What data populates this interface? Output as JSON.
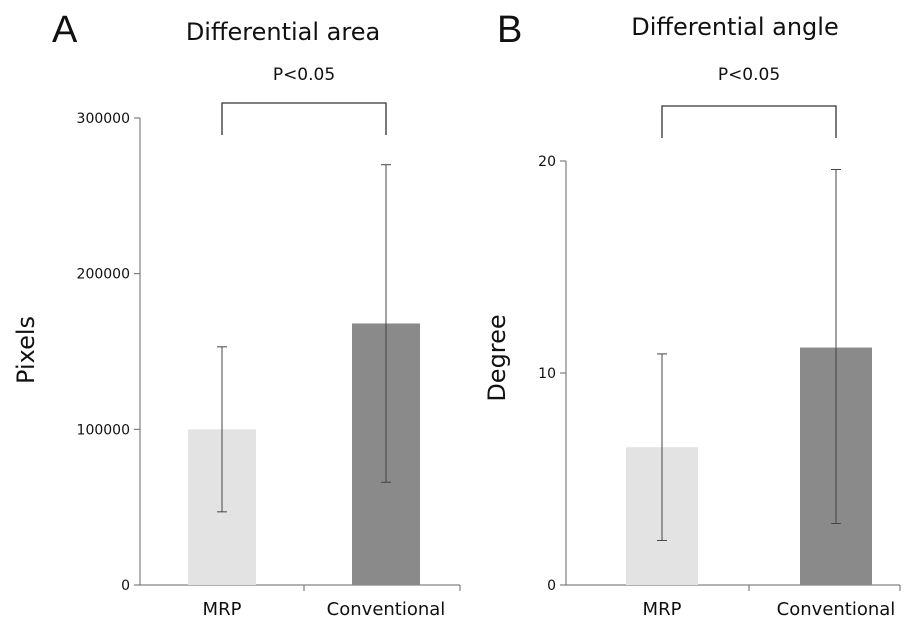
{
  "chart_data": [
    {
      "type": "bar",
      "panel_label": "A",
      "title": "Differential area",
      "ylabel": "Pixels",
      "xlabel": "",
      "categories": [
        "MRP",
        "Conventional"
      ],
      "values": [
        100000,
        168000
      ],
      "error": [
        [
          47000,
          153000
        ],
        [
          66000,
          270000
        ]
      ],
      "ylim": [
        0,
        300000
      ],
      "yticks": [
        0,
        100000,
        200000,
        300000
      ],
      "ytick_labels": [
        "0",
        "100000",
        "200000",
        "300000"
      ],
      "bar_colors": [
        "#e3e3e3",
        "#8a8a8a"
      ],
      "significance": "P<0.05",
      "grid": false
    },
    {
      "type": "bar",
      "panel_label": "B",
      "title": "Differential angle",
      "ylabel": "Degree",
      "xlabel": "",
      "categories": [
        "MRP",
        "Conventional"
      ],
      "values": [
        6.5,
        11.2
      ],
      "error": [
        [
          2.1,
          10.9
        ],
        [
          2.9,
          19.6
        ]
      ],
      "ylim": [
        0,
        20
      ],
      "yticks": [
        0,
        10,
        20
      ],
      "ytick_labels": [
        "0",
        "10",
        "20"
      ],
      "bar_colors": [
        "#e3e3e3",
        "#8a8a8a"
      ],
      "significance": "P<0.05",
      "grid": false
    }
  ]
}
